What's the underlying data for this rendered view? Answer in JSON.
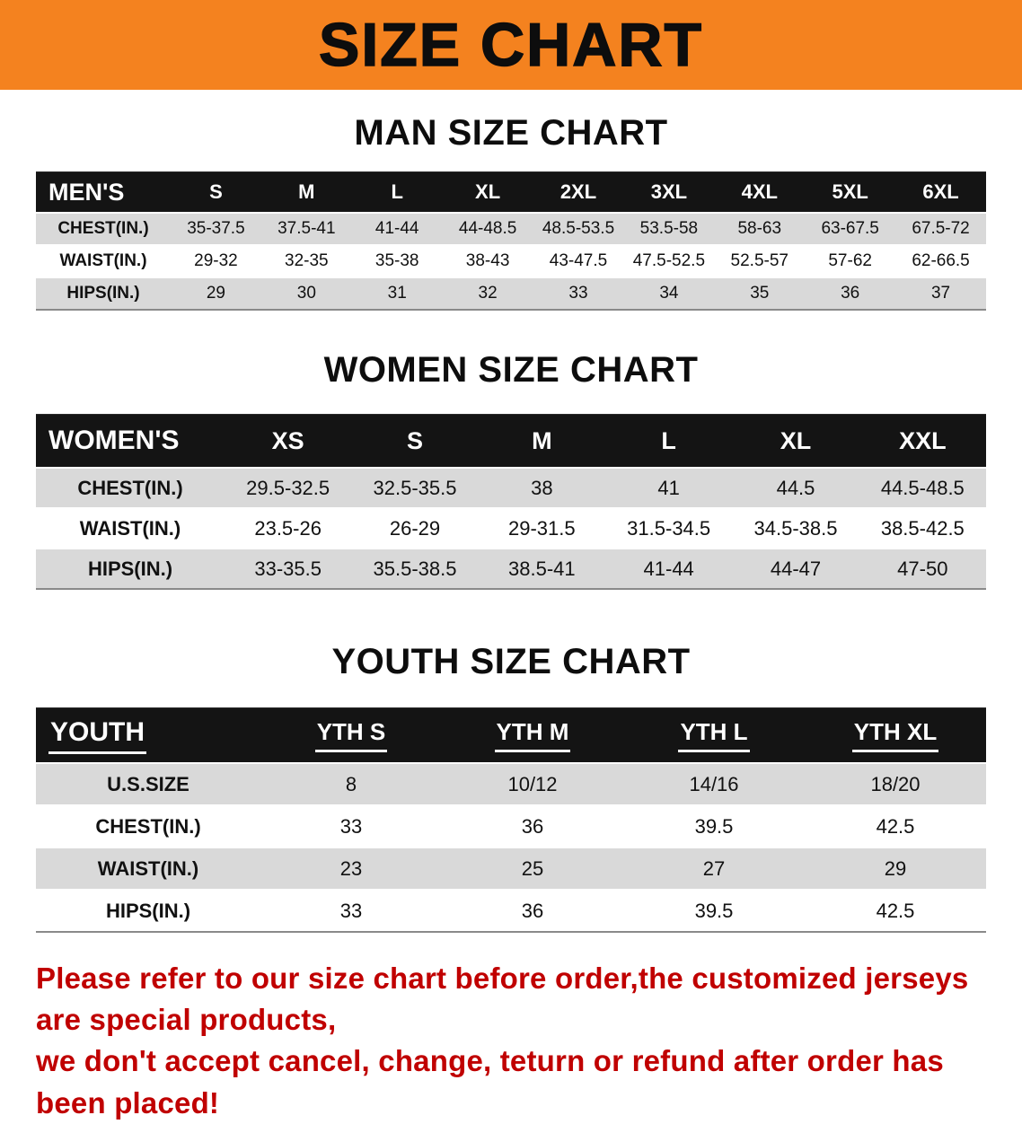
{
  "banner": {
    "title": "SIZE CHART",
    "bg_color": "#F4821F",
    "text_color": "#0D0D0D"
  },
  "sections": {
    "men_heading": "MAN SIZE CHART",
    "women_heading": "WOMEN SIZE CHART",
    "youth_heading": "YOUTH SIZE CHART"
  },
  "colors": {
    "table_header_bg": "#141414",
    "table_header_text": "#FFFFFF",
    "stripe_gray": "#D9D9D9",
    "footer_red": "#C00000"
  },
  "tables": {
    "men": {
      "label": "MEN'S",
      "columns": [
        "S",
        "M",
        "L",
        "XL",
        "2XL",
        "3XL",
        "4XL",
        "5XL",
        "6XL"
      ],
      "rows": [
        {
          "label": "CHEST(IN.)",
          "values": [
            "35-37.5",
            "37.5-41",
            "41-44",
            "44-48.5",
            "48.5-53.5",
            "53.5-58",
            "58-63",
            "63-67.5",
            "67.5-72"
          ]
        },
        {
          "label": "WAIST(IN.)",
          "values": [
            "29-32",
            "32-35",
            "35-38",
            "38-43",
            "43-47.5",
            "47.5-52.5",
            "52.5-57",
            "57-62",
            "62-66.5"
          ]
        },
        {
          "label": "HIPS(IN.)",
          "values": [
            "29",
            "30",
            "31",
            "32",
            "33",
            "34",
            "35",
            "36",
            "37"
          ]
        }
      ]
    },
    "women": {
      "label": "WOMEN'S",
      "columns": [
        "XS",
        "S",
        "M",
        "L",
        "XL",
        "XXL"
      ],
      "rows": [
        {
          "label": "CHEST(IN.)",
          "values": [
            "29.5-32.5",
            "32.5-35.5",
            "38",
            "41",
            "44.5",
            "44.5-48.5"
          ]
        },
        {
          "label": "WAIST(IN.)",
          "values": [
            "23.5-26",
            "26-29",
            "29-31.5",
            "31.5-34.5",
            "34.5-38.5",
            "38.5-42.5"
          ]
        },
        {
          "label": "HIPS(IN.)",
          "values": [
            "33-35.5",
            "35.5-38.5",
            "38.5-41",
            "41-44",
            "44-47",
            "47-50"
          ]
        }
      ]
    },
    "youth": {
      "label": "YOUTH",
      "columns": [
        "YTH S",
        "YTH M",
        "YTH L",
        "YTH XL"
      ],
      "rows": [
        {
          "label": "U.S.SIZE",
          "values": [
            "8",
            "10/12",
            "14/16",
            "18/20"
          ]
        },
        {
          "label": "CHEST(IN.)",
          "values": [
            "33",
            "36",
            "39.5",
            "42.5"
          ]
        },
        {
          "label": "WAIST(IN.)",
          "values": [
            "23",
            "25",
            "27",
            "29"
          ]
        },
        {
          "label": "HIPS(IN.)",
          "values": [
            "33",
            "36",
            "39.5",
            "42.5"
          ]
        }
      ]
    }
  },
  "footer": {
    "line1": "Please refer to our size chart before order,the customized jerseys are special products,",
    "line2": "we don't accept cancel, change, teturn or refund after order has been placed!"
  }
}
